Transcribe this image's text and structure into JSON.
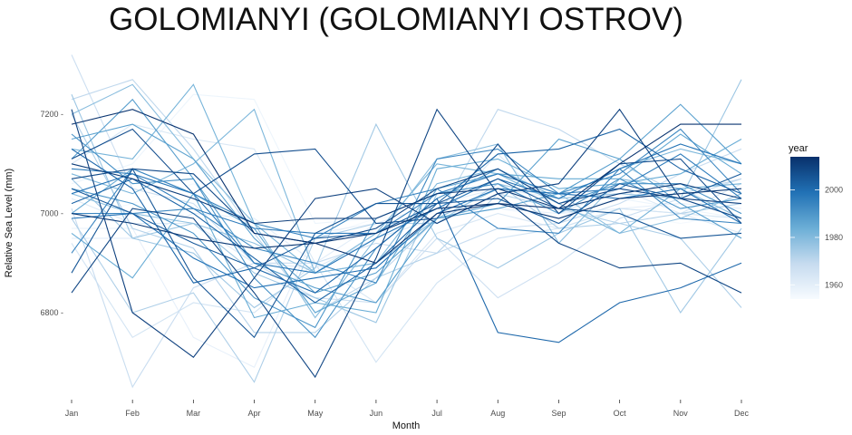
{
  "chart_data": {
    "type": "line",
    "title": "GOLOMIANYI (GOLOMIANYI OSTROV)",
    "xlabel": "Month",
    "ylabel": "Relative Sea Level (mm)",
    "categories": [
      "Jan",
      "Feb",
      "Mar",
      "Apr",
      "May",
      "Jun",
      "Jul",
      "Aug",
      "Sep",
      "Oct",
      "Nov",
      "Dec"
    ],
    "ylim": [
      6630,
      7330
    ],
    "yticks": [
      6800,
      7000,
      7200
    ],
    "ytick_labels": [
      "6800 -",
      "7000 -",
      "7200 -"
    ],
    "grid": false,
    "legend": {
      "title": "year",
      "position": "right",
      "type": "colorbar",
      "range": [
        1954,
        2014
      ],
      "breaks": [
        1960,
        1980,
        2000
      ],
      "break_labels": [
        "1960",
        "1980",
        "2000"
      ],
      "colors": [
        "#f7fbff",
        "#c6dbef",
        "#6baed6",
        "#2171b5",
        "#08306b"
      ]
    },
    "series": [
      {
        "year": 1955,
        "values": [
          6990,
          7020,
          7060,
          6980,
          6950,
          6990,
          7000,
          7010,
          6990,
          7000,
          6980,
          7000
        ]
      },
      {
        "year": 1957,
        "values": [
          7060,
          7100,
          7240,
          7230,
          6980,
          6990,
          7040,
          7060,
          7000,
          7030,
          7010,
          6990
        ]
      },
      {
        "year": 1959,
        "values": [
          6970,
          6970,
          6750,
          6690,
          6960,
          6980,
          6990,
          7010,
          7000,
          7010,
          7020,
          7010
        ]
      },
      {
        "year": 1960,
        "values": [
          6950,
          6950,
          7000,
          6990,
          6900,
          6980,
          7020,
          7050,
          7030,
          7040,
          7030,
          7020
        ]
      },
      {
        "year": 1962,
        "values": [
          7030,
          6980,
          6980,
          6900,
          6890,
          6950,
          6990,
          7120,
          7000,
          7050,
          7000,
          6960
        ]
      },
      {
        "year": 1963,
        "values": [
          7100,
          7180,
          7150,
          7130,
          6900,
          6820,
          6960,
          7000,
          6970,
          7010,
          7000,
          7060
        ]
      },
      {
        "year": 1965,
        "values": [
          6940,
          6750,
          6820,
          6800,
          6900,
          6700,
          6860,
          6950,
          6970,
          7010,
          7000,
          6990
        ]
      },
      {
        "year": 1967,
        "values": [
          7320,
          7050,
          7020,
          6900,
          6830,
          6820,
          6950,
          6830,
          6900,
          6990,
          7030,
          7070
        ]
      },
      {
        "year": 1968,
        "values": [
          7010,
          6650,
          6850,
          6900,
          6900,
          6940,
          6920,
          6970,
          6980,
          7020,
          7080,
          7130
        ]
      },
      {
        "year": 1970,
        "values": [
          7230,
          7270,
          7130,
          6960,
          6800,
          6870,
          6990,
          7210,
          7170,
          7100,
          7040,
          7070
        ]
      },
      {
        "year": 1972,
        "values": [
          7200,
          6970,
          6930,
          6760,
          6760,
          6870,
          6920,
          7040,
          7010,
          6980,
          7000,
          7020
        ]
      },
      {
        "year": 1973,
        "values": [
          6990,
          6800,
          6840,
          6660,
          6950,
          6980,
          6980,
          7060,
          6970,
          6980,
          6950,
          6810
        ]
      },
      {
        "year": 1975,
        "values": [
          7070,
          6950,
          6920,
          6810,
          6890,
          7180,
          6950,
          6890,
          6960,
          7010,
          6800,
          6970
        ]
      },
      {
        "year": 1976,
        "values": [
          7240,
          6950,
          6980,
          6880,
          6830,
          6780,
          7040,
          7060,
          7030,
          7040,
          7030,
          7270
        ]
      },
      {
        "year": 1978,
        "values": [
          7040,
          7000,
          6980,
          6940,
          6880,
          6900,
          6990,
          7050,
          7040,
          6960,
          6990,
          7040
        ]
      },
      {
        "year": 1979,
        "values": [
          7200,
          7260,
          7110,
          6980,
          6790,
          6950,
          7110,
          7140,
          6940,
          7070,
          7050,
          6990
        ]
      },
      {
        "year": 1981,
        "values": [
          7080,
          7040,
          7100,
          7210,
          6880,
          6900,
          7060,
          7090,
          7030,
          7090,
          7130,
          7100
        ]
      },
      {
        "year": 1982,
        "values": [
          7130,
          7110,
          7260,
          6980,
          6880,
          6960,
          7100,
          7080,
          7020,
          6960,
          7050,
          7060
        ]
      },
      {
        "year": 1984,
        "values": [
          6960,
          6870,
          7040,
          6790,
          6820,
          6800,
          7090,
          7110,
          7050,
          7060,
          7080,
          7150
        ]
      },
      {
        "year": 1985,
        "values": [
          7000,
          7090,
          7040,
          6970,
          6800,
          6860,
          7050,
          7080,
          7070,
          7070,
          7160,
          7080
        ]
      },
      {
        "year": 1987,
        "values": [
          7150,
          7180,
          7110,
          6950,
          6840,
          6880,
          6990,
          7020,
          7150,
          7110,
          7220,
          7100
        ]
      },
      {
        "year": 1988,
        "values": [
          7110,
          7230,
          7070,
          6900,
          6850,
          6820,
          6990,
          7010,
          7040,
          7110,
          7020,
          6950
        ]
      },
      {
        "year": 1990,
        "values": [
          7050,
          7020,
          6960,
          6830,
          6770,
          6990,
          7040,
          7060,
          7000,
          7070,
          7010,
          7030
        ]
      },
      {
        "year": 1991,
        "values": [
          7160,
          7060,
          7070,
          6870,
          6750,
          6930,
          7030,
          7090,
          7020,
          7060,
          7060,
          7000
        ]
      },
      {
        "year": 1993,
        "values": [
          7000,
          7000,
          7010,
          6930,
          6900,
          6860,
          7110,
          7130,
          7040,
          7080,
          7170,
          7040
        ]
      },
      {
        "year": 1994,
        "values": [
          6920,
          7090,
          7040,
          6980,
          6950,
          7020,
          7050,
          6970,
          6960,
          7090,
          6990,
          6980
        ]
      },
      {
        "year": 1996,
        "values": [
          7090,
          7080,
          7010,
          6970,
          6960,
          6960,
          7040,
          7080,
          7040,
          7050,
          7120,
          7030
        ]
      },
      {
        "year": 1998,
        "values": [
          7040,
          7080,
          7040,
          6900,
          6880,
          6950,
          7010,
          7070,
          7030,
          7090,
          7140,
          7100
        ]
      },
      {
        "year": 1999,
        "values": [
          6990,
          7000,
          6910,
          6850,
          6870,
          6890,
          7000,
          7050,
          7040,
          7030,
          7050,
          6980
        ]
      },
      {
        "year": 2001,
        "values": [
          7130,
          7050,
          6860,
          6890,
          6840,
          6930,
          7030,
          6760,
          6740,
          6820,
          6850,
          6900
        ]
      },
      {
        "year": 2002,
        "values": [
          7020,
          7070,
          7000,
          6910,
          6820,
          6900,
          7020,
          7120,
          7130,
          7170,
          7090,
          7040
        ]
      },
      {
        "year": 2004,
        "values": [
          7050,
          7000,
          6940,
          6890,
          6950,
          6960,
          7020,
          7030,
          6980,
          7060,
          7030,
          7080
        ]
      },
      {
        "year": 2005,
        "values": [
          6880,
          7090,
          6870,
          6750,
          6960,
          7020,
          7020,
          7070,
          7010,
          7000,
          6950,
          6960
        ]
      },
      {
        "year": 2007,
        "values": [
          7110,
          7170,
          7040,
          7120,
          7130,
          6980,
          6990,
          7140,
          7000,
          7100,
          7110,
          6980
        ]
      },
      {
        "year": 2008,
        "values": [
          7070,
          7090,
          7080,
          6960,
          6940,
          6970,
          7050,
          7090,
          7020,
          7050,
          7030,
          6990
        ]
      },
      {
        "year": 2009,
        "values": [
          6840,
          7010,
          6990,
          6840,
          6670,
          6910,
          7210,
          7040,
          6940,
          6890,
          6900,
          6840
        ]
      },
      {
        "year": 2010,
        "values": [
          7210,
          6800,
          6710,
          6870,
          7030,
          7050,
          6980,
          7040,
          7060,
          7210,
          7030,
          7020
        ]
      },
      {
        "year": 2011,
        "values": [
          7100,
          7070,
          7030,
          6980,
          6990,
          6990,
          7040,
          7050,
          7010,
          7040,
          7060,
          7030
        ]
      },
      {
        "year": 2012,
        "values": [
          7000,
          6980,
          6950,
          6930,
          6940,
          6960,
          7010,
          7020,
          6990,
          7030,
          7040,
          7050
        ]
      },
      {
        "year": 2013,
        "values": [
          7180,
          7210,
          7160,
          6960,
          6940,
          6900,
          7000,
          7020,
          7010,
          7100,
          7180,
          7180
        ]
      }
    ]
  }
}
